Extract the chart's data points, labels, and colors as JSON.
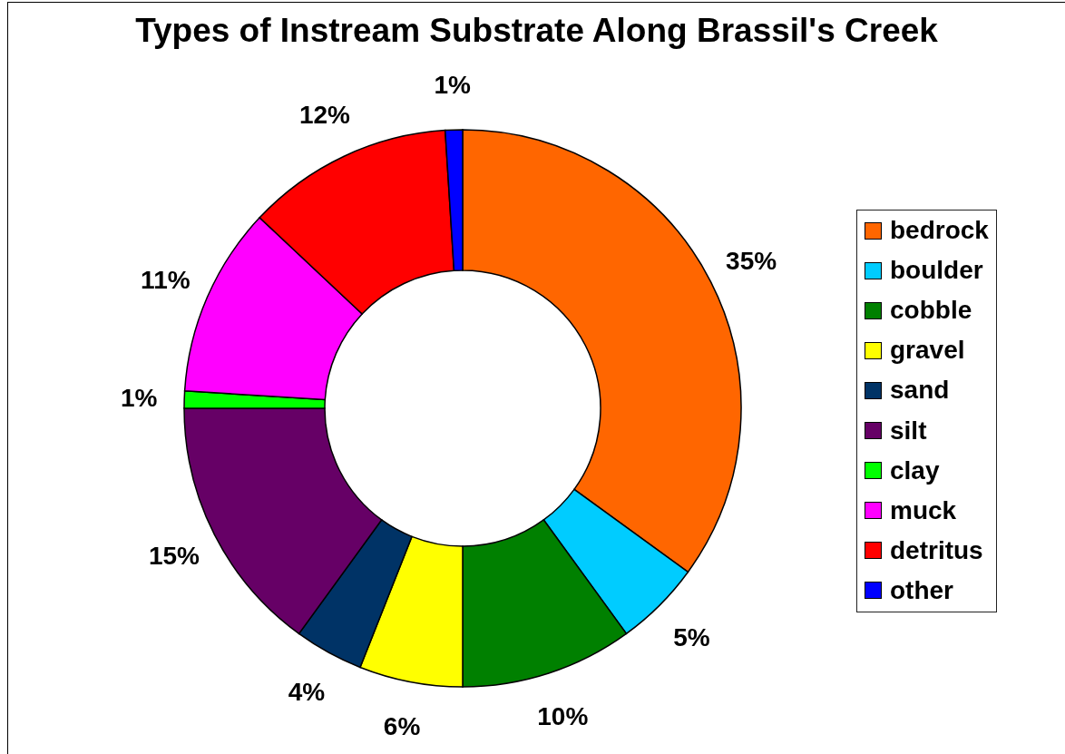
{
  "chart_data": {
    "type": "donut",
    "title": "Types of Instream Substrate Along Brassil's Creek",
    "categories": [
      "bedrock",
      "boulder",
      "cobble",
      "gravel",
      "sand",
      "silt",
      "clay",
      "muck",
      "detritus",
      "other"
    ],
    "values": [
      35,
      5,
      10,
      6,
      4,
      15,
      1,
      11,
      12,
      1
    ],
    "colors": [
      "#ff6600",
      "#00ccff",
      "#008000",
      "#ffff00",
      "#003366",
      "#660066",
      "#00ff00",
      "#ff00ff",
      "#ff0000",
      "#0000ff"
    ],
    "value_labels": [
      "35%",
      "5%",
      "10%",
      "6%",
      "4%",
      "15%",
      "1%",
      "11%",
      "12%",
      "1%"
    ],
    "legend": "right"
  }
}
